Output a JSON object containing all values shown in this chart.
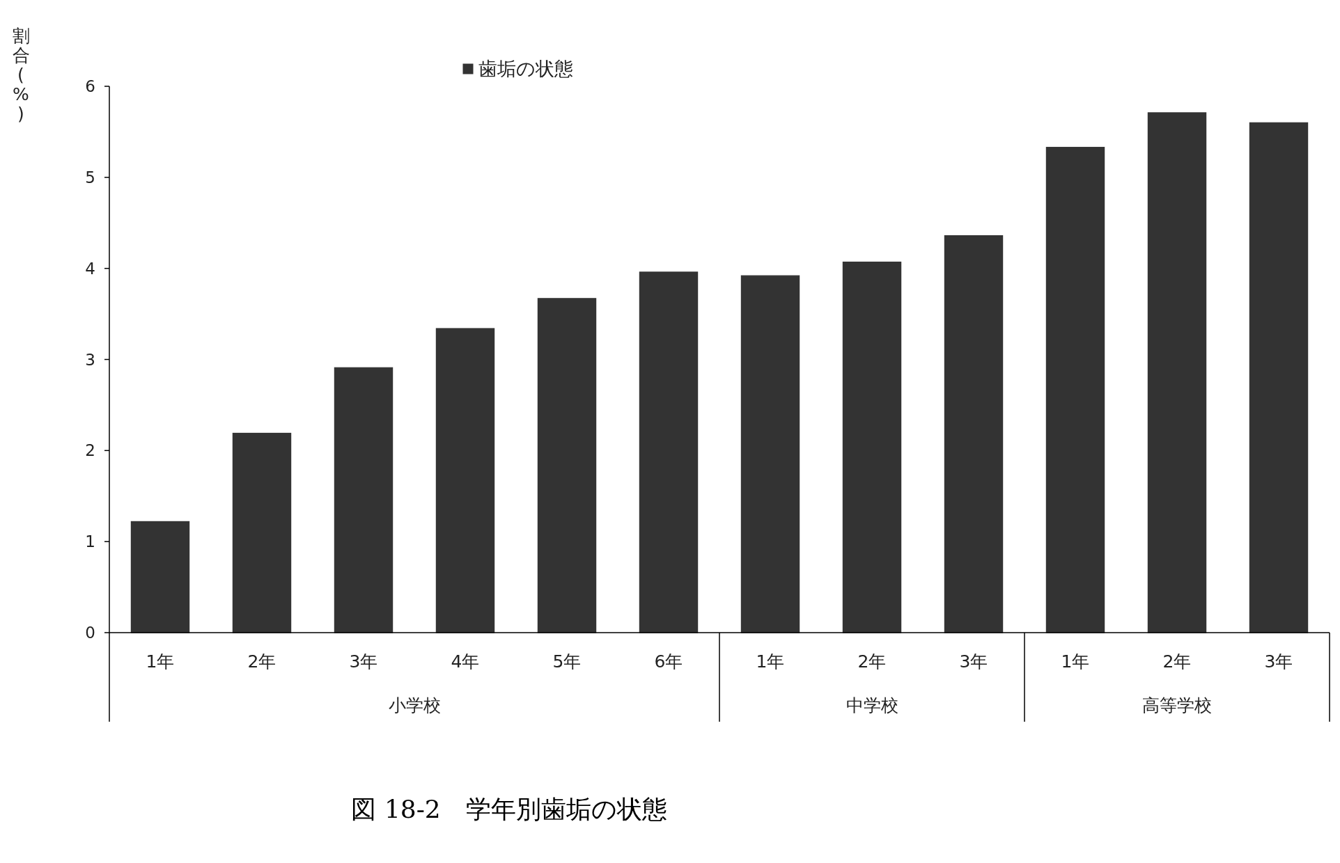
{
  "chart_data": {
    "type": "bar",
    "title": "図 18-2　学年別歯垢の状態",
    "ylabel": "割合(%)",
    "categories": [
      "1年",
      "2年",
      "3年",
      "4年",
      "5年",
      "6年",
      "1年",
      "2年",
      "3年",
      "1年",
      "2年",
      "3年"
    ],
    "annotations": [
      "小学校",
      "中学校",
      "高等学校"
    ],
    "series": [
      {
        "name": "歯垢の状態",
        "color": "#333333",
        "values": [
          1.22,
          2.19,
          2.91,
          3.34,
          3.67,
          3.96,
          3.92,
          4.07,
          4.36,
          5.33,
          5.71,
          5.6
        ]
      }
    ],
    "ylim": [
      0,
      6
    ],
    "yticks": [
      0,
      1,
      2,
      3,
      4,
      5,
      6
    ],
    "legend": "top",
    "grid": false
  }
}
